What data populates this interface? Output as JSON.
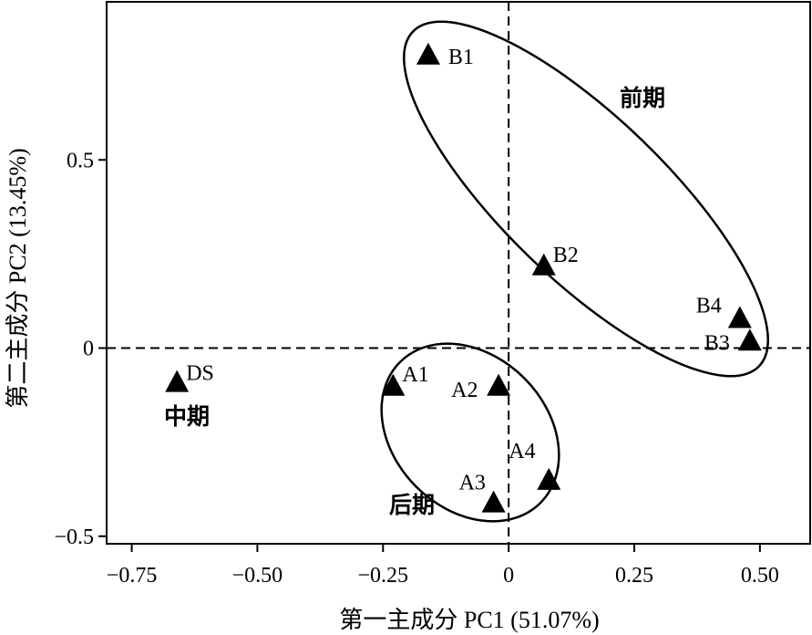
{
  "chart_data": {
    "type": "scatter",
    "title": "",
    "xlabel": "第一主成分 PC1 (51.07%)",
    "ylabel": "第二主成分 PC2 (13.45%)",
    "xlim": [
      -0.8,
      0.6
    ],
    "ylim": [
      -0.52,
      0.92
    ],
    "x_ticks": [
      -0.75,
      -0.5,
      -0.25,
      0,
      0.25,
      0.5
    ],
    "x_tick_labels": [
      "−0.75",
      "−0.50",
      "−0.25",
      "0",
      "0.25",
      "0.50"
    ],
    "y_ticks": [
      -0.5,
      0,
      0.5
    ],
    "y_tick_labels": [
      "−0.5",
      "0",
      "0.5"
    ],
    "reference_lines": {
      "x": 0,
      "y": 0,
      "style": "dashed"
    },
    "grid": false,
    "marker": "filled-triangle",
    "points": [
      {
        "label": "B1",
        "x": -0.16,
        "y": 0.78
      },
      {
        "label": "B2",
        "x": 0.07,
        "y": 0.22
      },
      {
        "label": "B4",
        "x": 0.46,
        "y": 0.08
      },
      {
        "label": "B3",
        "x": 0.48,
        "y": 0.02
      },
      {
        "label": "DS",
        "x": -0.66,
        "y": -0.09
      },
      {
        "label": "A1",
        "x": -0.23,
        "y": -0.1
      },
      {
        "label": "A2",
        "x": -0.02,
        "y": -0.1
      },
      {
        "label": "A3",
        "x": -0.03,
        "y": -0.41
      },
      {
        "label": "A4",
        "x": 0.08,
        "y": -0.35
      }
    ],
    "groups": [
      {
        "label": "前期",
        "members": [
          "B1",
          "B2",
          "B3",
          "B4"
        ]
      },
      {
        "label": "中期",
        "members": [
          "DS"
        ]
      },
      {
        "label": "后期",
        "members": [
          "A1",
          "A2",
          "A3",
          "A4"
        ]
      }
    ]
  }
}
